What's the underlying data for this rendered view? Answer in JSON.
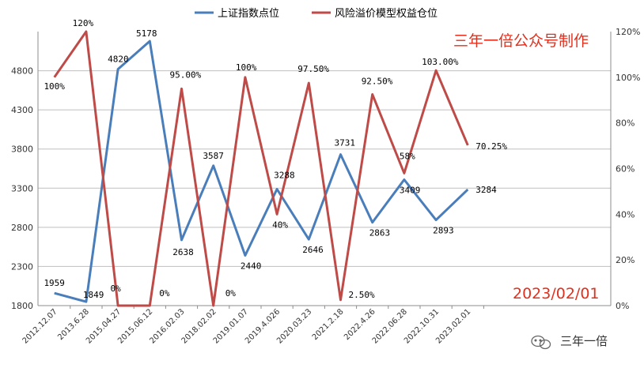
{
  "chart_data": {
    "type": "line",
    "categories": [
      "2012.12.07",
      "2013.6.28",
      "2015.04.27",
      "2015.06.12",
      "2016.02.03",
      "2018.02.02",
      "2019.01.07",
      "2019.4.026",
      "2020.03.23",
      "2021.2.18",
      "2022.4.26",
      "2022.06.28",
      "2022.10.31",
      "2023.02.01"
    ],
    "series": [
      {
        "name": "上证指数点位",
        "axis": "left",
        "color": "#4a7ebb",
        "values": [
          1959,
          1849,
          4820,
          5178,
          2638,
          3587,
          2440,
          3288,
          2646,
          3731,
          2863,
          3409,
          2893,
          3284
        ],
        "labels": [
          "1959",
          "1849",
          "4820",
          "5178",
          "2638",
          "3587",
          "2440",
          "3288",
          "2646",
          "3731",
          "2863",
          "3409",
          "2893",
          "3284"
        ]
      },
      {
        "name": "风险溢价模型权益仓位",
        "axis": "right",
        "color": "#be4b48",
        "values": [
          100,
          120,
          0,
          0,
          95,
          0,
          100,
          40,
          97.5,
          2.5,
          92.5,
          58,
          103,
          70.25
        ],
        "labels": [
          "100%",
          "120%",
          "0%",
          "0%",
          "95.00%",
          "0%",
          "100%",
          "40%",
          "97.50%",
          "2.50%",
          "92.50%",
          "58%",
          "103.00%",
          "70.25%"
        ]
      }
    ],
    "y_left": {
      "range": [
        1800,
        5300
      ],
      "ticks": [
        "1800",
        "2300",
        "2800",
        "3300",
        "3800",
        "4300",
        "4800"
      ]
    },
    "y_right": {
      "range": [
        0,
        120
      ],
      "ticks": [
        "0%",
        "20%",
        "40%",
        "60%",
        "80%",
        "100%",
        "120%"
      ]
    },
    "grid": true,
    "legend_position": "top-center"
  },
  "annotations": {
    "brand": "三年一倍公众号制作",
    "date": "2023/02/01",
    "watermark": "三年一倍"
  }
}
